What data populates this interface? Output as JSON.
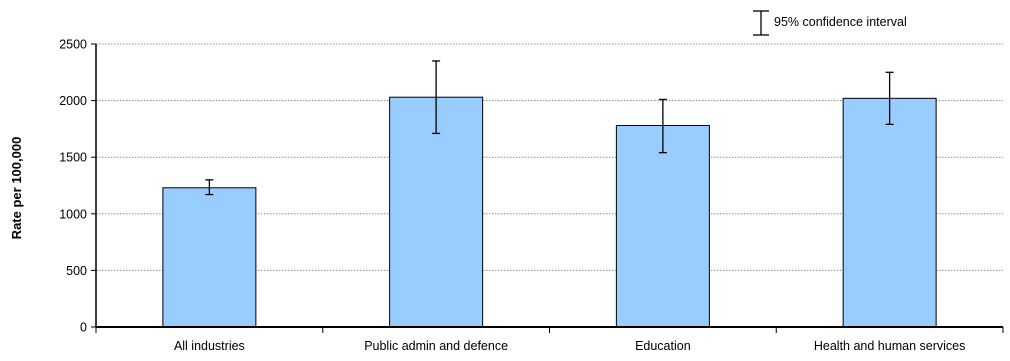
{
  "chart_data": {
    "type": "bar",
    "categories": [
      "All industries",
      "Public admin and defence",
      "Education",
      "Health and human services"
    ],
    "values": [
      1230,
      2030,
      1780,
      2020
    ],
    "ci_low": [
      1170,
      1710,
      1540,
      1790
    ],
    "ci_high": [
      1300,
      2350,
      2010,
      2250
    ],
    "ylabel": "Rate per 100,000",
    "xlabel": "",
    "ylim": [
      0,
      2500
    ],
    "yticks": [
      0,
      500,
      1000,
      1500,
      2000,
      2500
    ],
    "grid": true,
    "legend": {
      "label": "95% confidence interval",
      "position": "top-right"
    },
    "colors": {
      "bar_fill": "#99ccff",
      "bar_stroke": "#000000",
      "grid": "#8c8c8c",
      "axis": "#000000",
      "text": "#000000"
    }
  }
}
